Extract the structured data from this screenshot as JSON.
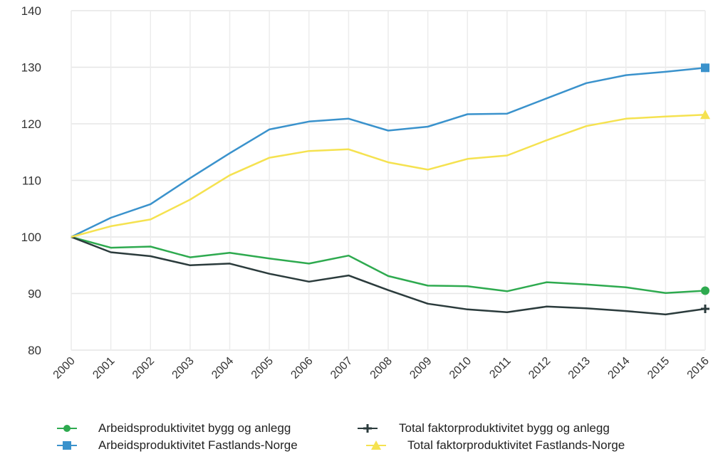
{
  "chart_data": {
    "type": "line",
    "x": [
      "2000",
      "2001",
      "2002",
      "2003",
      "2004",
      "2005",
      "2006",
      "2007",
      "2008",
      "2009",
      "2010",
      "2011",
      "2012",
      "2013",
      "2014",
      "2015",
      "2016"
    ],
    "ylim": [
      80,
      140
    ],
    "yticks": [
      80,
      90,
      100,
      110,
      120,
      130,
      140
    ],
    "grid": true,
    "legend_position": "bottom",
    "series": [
      {
        "name": "Arbeidsproduktivitet bygg og anlegg",
        "color": "#2eaa4f",
        "marker": "circle",
        "values": [
          100,
          98.1,
          98.3,
          96.4,
          97.2,
          96.2,
          95.3,
          96.7,
          93.1,
          91.4,
          91.3,
          90.4,
          92.0,
          91.6,
          91.1,
          90.1,
          90.5
        ]
      },
      {
        "name": "Total faktorproduktivitet bygg og anlegg",
        "color": "#2b3b3c",
        "marker": "plus",
        "values": [
          100,
          97.3,
          96.6,
          95.0,
          95.3,
          93.5,
          92.1,
          93.2,
          90.6,
          88.2,
          87.2,
          86.7,
          87.7,
          87.4,
          86.9,
          86.3,
          87.3
        ]
      },
      {
        "name": "Arbeidsproduktivitet Fastlands-Norge",
        "color": "#3a92cc",
        "marker": "square",
        "values": [
          100,
          103.4,
          105.8,
          110.4,
          114.8,
          119.0,
          120.4,
          120.9,
          118.8,
          119.5,
          121.7,
          121.8,
          124.5,
          127.2,
          128.6,
          129.2,
          129.9
        ]
      },
      {
        "name": "Total faktorproduktivitet Fastlands-Norge",
        "color": "#f5e250",
        "marker": "triangle",
        "values": [
          100,
          101.9,
          103.1,
          106.6,
          110.9,
          114.0,
          115.2,
          115.5,
          113.2,
          111.9,
          113.8,
          114.4,
          117.1,
          119.6,
          120.9,
          121.3,
          121.6
        ]
      }
    ]
  }
}
